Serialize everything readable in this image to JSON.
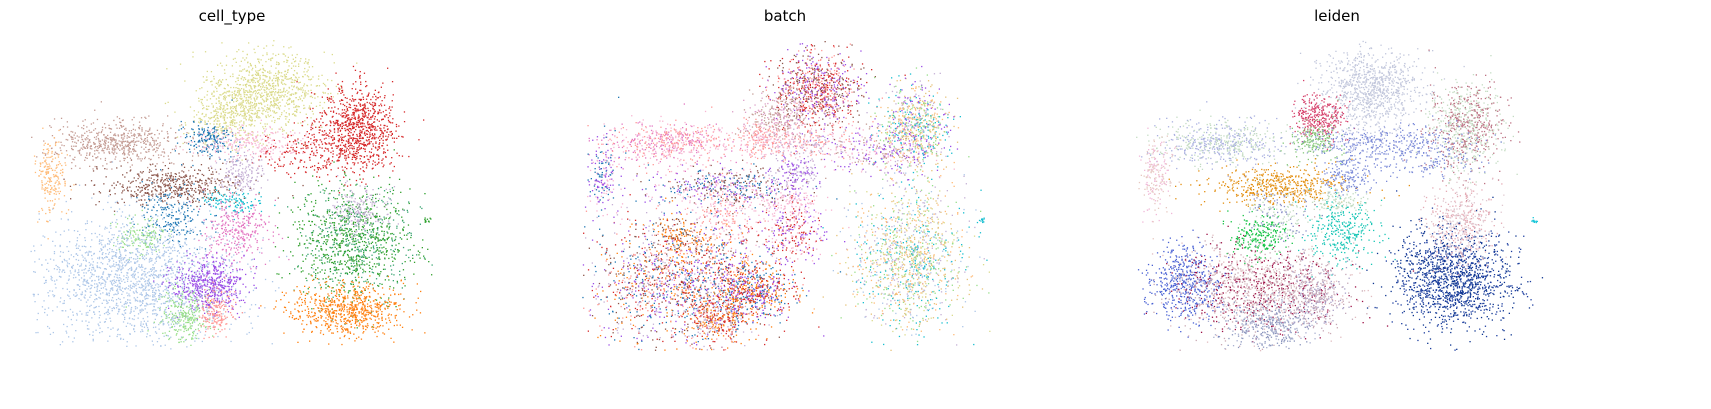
{
  "figure": {
    "titles": [
      "cell_type",
      "batch",
      "leiden"
    ]
  },
  "chart_data": [
    {
      "type": "scatter",
      "title": "cell_type",
      "xlabel": "",
      "ylabel": "",
      "axes_visible": false,
      "grid": false,
      "legend": "none",
      "marker_size": "tiny",
      "color_by": "categorical",
      "clusters": [
        {
          "id": "c01",
          "cx": 0.58,
          "cy": 0.84,
          "sx": 0.07,
          "sy": 0.06,
          "n": 900,
          "colors": [
            "#dbdb8d"
          ]
        },
        {
          "id": "c02",
          "cx": 0.49,
          "cy": 0.75,
          "sx": 0.05,
          "sy": 0.04,
          "n": 320,
          "colors": [
            "#dbdb8d"
          ]
        },
        {
          "id": "c03",
          "cx": 0.81,
          "cy": 0.72,
          "sx": 0.045,
          "sy": 0.07,
          "n": 800,
          "colors": [
            "#d62728"
          ]
        },
        {
          "id": "c04",
          "cx": 0.22,
          "cy": 0.67,
          "sx": 0.08,
          "sy": 0.035,
          "n": 600,
          "colors": [
            "#c49c94"
          ]
        },
        {
          "id": "c05",
          "cx": 0.44,
          "cy": 0.68,
          "sx": 0.03,
          "sy": 0.03,
          "n": 180,
          "colors": [
            "#1f77b4"
          ]
        },
        {
          "id": "c06",
          "cx": 0.55,
          "cy": 0.67,
          "sx": 0.07,
          "sy": 0.025,
          "n": 260,
          "colors": [
            "#f7b6d2"
          ]
        },
        {
          "id": "c07",
          "cx": 0.71,
          "cy": 0.64,
          "sx": 0.07,
          "sy": 0.04,
          "n": 250,
          "colors": [
            "#d62728"
          ]
        },
        {
          "id": "c08",
          "cx": 0.05,
          "cy": 0.56,
          "sx": 0.02,
          "sy": 0.06,
          "n": 200,
          "colors": [
            "#ffbb78"
          ]
        },
        {
          "id": "c09",
          "cx": 0.35,
          "cy": 0.53,
          "sx": 0.09,
          "sy": 0.03,
          "n": 500,
          "colors": [
            "#8c564b"
          ]
        },
        {
          "id": "c10",
          "cx": 0.52,
          "cy": 0.57,
          "sx": 0.03,
          "sy": 0.035,
          "n": 180,
          "colors": [
            "#c5b0d5"
          ]
        },
        {
          "id": "c11",
          "cx": 0.5,
          "cy": 0.48,
          "sx": 0.04,
          "sy": 0.02,
          "n": 120,
          "colors": [
            "#17becf"
          ]
        },
        {
          "id": "c12",
          "cx": 0.35,
          "cy": 0.44,
          "sx": 0.04,
          "sy": 0.05,
          "n": 200,
          "colors": [
            "#1f77b4"
          ]
        },
        {
          "id": "c13",
          "cx": 0.51,
          "cy": 0.38,
          "sx": 0.04,
          "sy": 0.05,
          "n": 300,
          "colors": [
            "#e377c2"
          ]
        },
        {
          "id": "c14",
          "cx": 0.27,
          "cy": 0.37,
          "sx": 0.03,
          "sy": 0.03,
          "n": 150,
          "colors": [
            "#98df8a"
          ]
        },
        {
          "id": "c15",
          "cx": 0.27,
          "cy": 0.23,
          "sx": 0.12,
          "sy": 0.1,
          "n": 1800,
          "colors": [
            "#aec7e8"
          ]
        },
        {
          "id": "c16",
          "cx": 0.44,
          "cy": 0.21,
          "sx": 0.045,
          "sy": 0.04,
          "n": 500,
          "colors": [
            "#9b4ce6"
          ]
        },
        {
          "id": "c17",
          "cx": 0.38,
          "cy": 0.11,
          "sx": 0.03,
          "sy": 0.04,
          "n": 250,
          "colors": [
            "#98df8a"
          ]
        },
        {
          "id": "c18",
          "cx": 0.46,
          "cy": 0.12,
          "sx": 0.02,
          "sy": 0.04,
          "n": 180,
          "colors": [
            "#ff9896"
          ]
        },
        {
          "id": "c19",
          "cx": 0.8,
          "cy": 0.35,
          "sx": 0.07,
          "sy": 0.09,
          "n": 1100,
          "colors": [
            "#2ca02c",
            "#3aa573",
            "#33a02c"
          ]
        },
        {
          "id": "c20",
          "cx": 0.78,
          "cy": 0.13,
          "sx": 0.07,
          "sy": 0.04,
          "n": 700,
          "colors": [
            "#ff7f0e"
          ]
        },
        {
          "id": "c21",
          "cx": 0.81,
          "cy": 0.45,
          "sx": 0.035,
          "sy": 0.04,
          "n": 200,
          "colors": [
            "#c5b0d5"
          ]
        },
        {
          "id": "c22",
          "cx": 0.98,
          "cy": 0.42,
          "sx": 0.004,
          "sy": 0.004,
          "n": 12,
          "colors": [
            "#2ca02c"
          ]
        }
      ]
    },
    {
      "type": "scatter",
      "title": "batch",
      "xlabel": "",
      "ylabel": "",
      "axes_visible": false,
      "grid": false,
      "legend": "none",
      "marker_size": "tiny",
      "color_by": "categorical",
      "clusters": [
        {
          "id": "b01",
          "cx": 0.58,
          "cy": 0.84,
          "sx": 0.055,
          "sy": 0.06,
          "n": 900,
          "colors": [
            "#d62728",
            "#8c564b",
            "#9b4ce6",
            "#ff9896"
          ]
        },
        {
          "id": "b02",
          "cx": 0.49,
          "cy": 0.75,
          "sx": 0.045,
          "sy": 0.04,
          "n": 320,
          "colors": [
            "#c49c94",
            "#dca0c8"
          ]
        },
        {
          "id": "b03",
          "cx": 0.81,
          "cy": 0.72,
          "sx": 0.045,
          "sy": 0.07,
          "n": 800,
          "colors": [
            "#17becf",
            "#ffbb78",
            "#98df8a",
            "#c5b0d5",
            "#9b4ce6",
            "#e6c27a"
          ]
        },
        {
          "id": "b04",
          "cx": 0.22,
          "cy": 0.67,
          "sx": 0.08,
          "sy": 0.035,
          "n": 600,
          "colors": [
            "#f7b6d2",
            "#ff9896",
            "#e377c2"
          ]
        },
        {
          "id": "b05",
          "cx": 0.44,
          "cy": 0.68,
          "sx": 0.03,
          "sy": 0.03,
          "n": 180,
          "colors": [
            "#f7b6d2",
            "#ff9896"
          ]
        },
        {
          "id": "b06",
          "cx": 0.55,
          "cy": 0.67,
          "sx": 0.07,
          "sy": 0.025,
          "n": 260,
          "colors": [
            "#f7b6d2",
            "#c5b0d5",
            "#ff9896"
          ]
        },
        {
          "id": "b07",
          "cx": 0.71,
          "cy": 0.64,
          "sx": 0.07,
          "sy": 0.04,
          "n": 250,
          "colors": [
            "#f7b6d2",
            "#9b4ce6",
            "#c49c94"
          ]
        },
        {
          "id": "b08",
          "cx": 0.05,
          "cy": 0.56,
          "sx": 0.02,
          "sy": 0.06,
          "n": 200,
          "colors": [
            "#f7b6d2",
            "#1f77b4",
            "#9b4ce6"
          ]
        },
        {
          "id": "b09",
          "cx": 0.35,
          "cy": 0.53,
          "sx": 0.09,
          "sy": 0.03,
          "n": 500,
          "colors": [
            "#9b4ce6",
            "#1f77b4",
            "#f7b6d2",
            "#8c564b"
          ]
        },
        {
          "id": "b10",
          "cx": 0.52,
          "cy": 0.57,
          "sx": 0.03,
          "sy": 0.035,
          "n": 180,
          "colors": [
            "#c5b0d5",
            "#9b4ce6"
          ]
        },
        {
          "id": "b11",
          "cx": 0.5,
          "cy": 0.48,
          "sx": 0.04,
          "sy": 0.02,
          "n": 120,
          "colors": [
            "#f7b6d2"
          ]
        },
        {
          "id": "b12",
          "cx": 0.35,
          "cy": 0.44,
          "sx": 0.04,
          "sy": 0.05,
          "n": 200,
          "colors": [
            "#f7b6d2",
            "#ff9896"
          ]
        },
        {
          "id": "b13",
          "cx": 0.51,
          "cy": 0.38,
          "sx": 0.04,
          "sy": 0.05,
          "n": 300,
          "colors": [
            "#d62728",
            "#9b4ce6",
            "#f7b6d2"
          ]
        },
        {
          "id": "b14",
          "cx": 0.24,
          "cy": 0.37,
          "sx": 0.03,
          "sy": 0.03,
          "n": 150,
          "colors": [
            "#ff7f0e",
            "#8c564b"
          ]
        },
        {
          "id": "b15",
          "cx": 0.24,
          "cy": 0.22,
          "sx": 0.11,
          "sy": 0.1,
          "n": 1800,
          "colors": [
            "#d62728",
            "#9b4ce6",
            "#8c564b",
            "#ff9896",
            "#c5b0d5",
            "#1f77b4",
            "#ff7f0e"
          ]
        },
        {
          "id": "b16",
          "cx": 0.42,
          "cy": 0.19,
          "sx": 0.05,
          "sy": 0.05,
          "n": 600,
          "colors": [
            "#ff7f0e",
            "#d62728",
            "#9b4ce6",
            "#1f77b4"
          ]
        },
        {
          "id": "b17",
          "cx": 0.33,
          "cy": 0.1,
          "sx": 0.035,
          "sy": 0.04,
          "n": 300,
          "colors": [
            "#ff7f0e",
            "#d62728",
            "#c5b0d5"
          ]
        },
        {
          "id": "b18",
          "cx": 0.8,
          "cy": 0.3,
          "sx": 0.07,
          "sy": 0.11,
          "n": 1400,
          "colors": [
            "#aec7e8",
            "#98df8a",
            "#ffbb78",
            "#17becf",
            "#c5b0d5",
            "#e6c27a",
            "#dbdb8d"
          ]
        },
        {
          "id": "b19",
          "cx": 0.98,
          "cy": 0.42,
          "sx": 0.004,
          "sy": 0.004,
          "n": 12,
          "colors": [
            "#17becf"
          ]
        }
      ]
    },
    {
      "type": "scatter",
      "title": "leiden",
      "xlabel": "",
      "ylabel": "",
      "axes_visible": false,
      "grid": false,
      "legend": "none",
      "marker_size": "tiny",
      "color_by": "categorical",
      "clusters": [
        {
          "id": "l01",
          "cx": 0.58,
          "cy": 0.84,
          "sx": 0.06,
          "sy": 0.06,
          "n": 900,
          "colors": [
            "#c2c7dc"
          ]
        },
        {
          "id": "l02",
          "cx": 0.45,
          "cy": 0.75,
          "sx": 0.03,
          "sy": 0.04,
          "n": 320,
          "colors": [
            "#d6416b"
          ]
        },
        {
          "id": "l03",
          "cx": 0.81,
          "cy": 0.72,
          "sx": 0.045,
          "sy": 0.07,
          "n": 800,
          "colors": [
            "#bd7384",
            "#c4dcc3"
          ]
        },
        {
          "id": "l04",
          "cx": 0.22,
          "cy": 0.67,
          "sx": 0.08,
          "sy": 0.035,
          "n": 600,
          "colors": [
            "#aab0e0",
            "#c4dcc3"
          ]
        },
        {
          "id": "l05",
          "cx": 0.44,
          "cy": 0.68,
          "sx": 0.03,
          "sy": 0.03,
          "n": 180,
          "colors": [
            "#86c87a"
          ]
        },
        {
          "id": "l06",
          "cx": 0.57,
          "cy": 0.67,
          "sx": 0.07,
          "sy": 0.025,
          "n": 260,
          "colors": [
            "#7b8ad8",
            "#aab0e0"
          ]
        },
        {
          "id": "l07",
          "cx": 0.71,
          "cy": 0.64,
          "sx": 0.07,
          "sy": 0.04,
          "n": 250,
          "colors": [
            "#7b8ad8"
          ]
        },
        {
          "id": "l08",
          "cx": 0.05,
          "cy": 0.56,
          "sx": 0.02,
          "sy": 0.06,
          "n": 200,
          "colors": [
            "#e6c8c0",
            "#f0b8d8"
          ]
        },
        {
          "id": "l09",
          "cx": 0.35,
          "cy": 0.53,
          "sx": 0.09,
          "sy": 0.03,
          "n": 500,
          "colors": [
            "#e38f12"
          ]
        },
        {
          "id": "l10",
          "cx": 0.52,
          "cy": 0.57,
          "sx": 0.03,
          "sy": 0.035,
          "n": 180,
          "colors": [
            "#7b8ad8"
          ]
        },
        {
          "id": "l11",
          "cx": 0.5,
          "cy": 0.48,
          "sx": 0.04,
          "sy": 0.02,
          "n": 120,
          "colors": [
            "#c4dcc3"
          ]
        },
        {
          "id": "l12",
          "cx": 0.35,
          "cy": 0.44,
          "sx": 0.04,
          "sy": 0.05,
          "n": 200,
          "colors": [
            "#8a8fc8",
            "#c4dcc3"
          ]
        },
        {
          "id": "l13",
          "cx": 0.51,
          "cy": 0.38,
          "sx": 0.04,
          "sy": 0.05,
          "n": 300,
          "colors": [
            "#19c6b6"
          ]
        },
        {
          "id": "l14",
          "cx": 0.3,
          "cy": 0.37,
          "sx": 0.035,
          "sy": 0.035,
          "n": 220,
          "colors": [
            "#14c244"
          ]
        },
        {
          "id": "l15",
          "cx": 0.12,
          "cy": 0.22,
          "sx": 0.045,
          "sy": 0.06,
          "n": 500,
          "colors": [
            "#4a62d4"
          ]
        },
        {
          "id": "l16",
          "cx": 0.3,
          "cy": 0.2,
          "sx": 0.1,
          "sy": 0.07,
          "n": 1300,
          "colors": [
            "#9c1046",
            "#e0bcc0",
            "#c9aab4"
          ]
        },
        {
          "id": "l17",
          "cx": 0.33,
          "cy": 0.08,
          "sx": 0.05,
          "sy": 0.04,
          "n": 400,
          "colors": [
            "#8a95bd",
            "#aab0cf"
          ]
        },
        {
          "id": "l18",
          "cx": 0.44,
          "cy": 0.18,
          "sx": 0.04,
          "sy": 0.05,
          "n": 350,
          "colors": [
            "#c4a8b8",
            "#a9a0c8"
          ]
        },
        {
          "id": "l19",
          "cx": 0.78,
          "cy": 0.23,
          "sx": 0.07,
          "sy": 0.08,
          "n": 1400,
          "colors": [
            "#1d3ea0",
            "#0d3590"
          ]
        },
        {
          "id": "l20",
          "cx": 0.8,
          "cy": 0.41,
          "sx": 0.04,
          "sy": 0.06,
          "n": 450,
          "colors": [
            "#e4aab4",
            "#e0c8d0"
          ]
        },
        {
          "id": "l21",
          "cx": 0.98,
          "cy": 0.42,
          "sx": 0.004,
          "sy": 0.004,
          "n": 12,
          "colors": [
            "#19c6d8"
          ]
        }
      ]
    }
  ]
}
